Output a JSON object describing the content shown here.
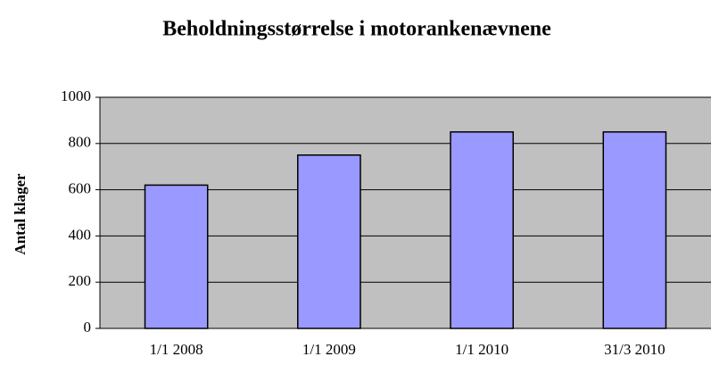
{
  "chart_data": {
    "type": "bar",
    "title": "Beholdningsstørrelse i motorankenævnene",
    "y_label": "Antal klager",
    "categories": [
      "1/1 2008",
      "1/1 2009",
      "1/1 2010",
      "31/3 2010"
    ],
    "values": [
      620,
      750,
      850,
      850
    ],
    "color": "#9999ff",
    "ylim": [
      0,
      1000
    ],
    "yticks": [
      0,
      200,
      400,
      600,
      800,
      1000
    ],
    "grid": true
  }
}
